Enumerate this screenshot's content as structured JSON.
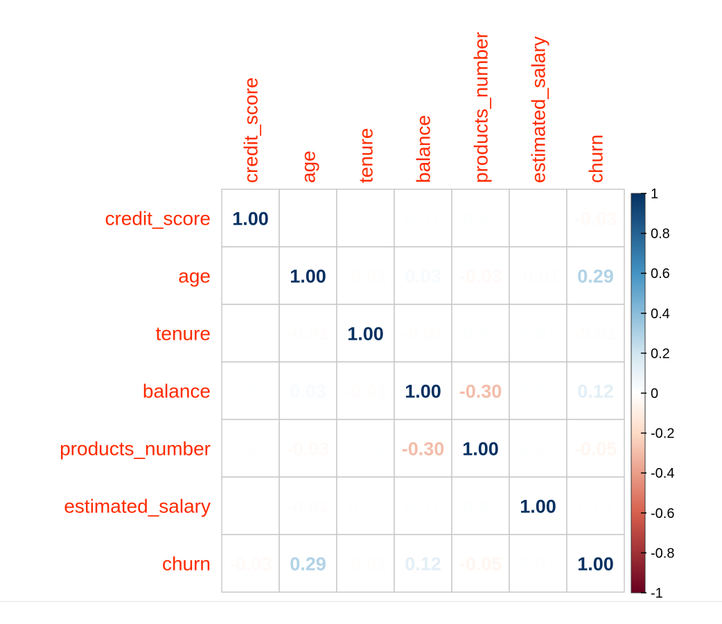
{
  "chart_data": {
    "type": "heatmap",
    "variables": [
      "credit_score",
      "age",
      "tenure",
      "balance",
      "products_number",
      "estimated_salary",
      "churn"
    ],
    "matrix": [
      [
        1.0,
        -0.0,
        -0.0,
        0.01,
        0.01,
        -0.0,
        -0.03
      ],
      [
        -0.0,
        1.0,
        -0.01,
        0.03,
        -0.03,
        -0.01,
        0.29
      ],
      [
        -0.0,
        -0.01,
        1.0,
        -0.01,
        0.01,
        0.01,
        -0.01
      ],
      [
        0.01,
        0.03,
        -0.01,
        1.0,
        -0.3,
        0.01,
        0.12
      ],
      [
        0.01,
        -0.03,
        0.01,
        -0.3,
        1.0,
        0.01,
        -0.05
      ],
      [
        -0.0,
        -0.01,
        0.01,
        0.01,
        0.01,
        1.0,
        0.01
      ],
      [
        -0.03,
        0.29,
        -0.01,
        0.12,
        -0.05,
        0.01,
        1.0
      ]
    ],
    "value_format": "2 decimals",
    "colorbar": {
      "min": -1,
      "max": 1,
      "ticks": [
        "1",
        "0.8",
        "0.6",
        "0.4",
        "0.2",
        "0",
        "-0.2",
        "-0.4",
        "-0.6",
        "-0.8",
        "-1"
      ],
      "placement": "right"
    },
    "color_scale": {
      "negative_end": "#67001F",
      "mid_negative": "#D6604D",
      "light_negative": "#FDDBC7",
      "zero": "#FFFFFF",
      "light_positive": "#D1E5F0",
      "mid_positive": "#4393C3",
      "positive_end": "#053061"
    },
    "label_color": "#FF2A00",
    "grid": true
  }
}
